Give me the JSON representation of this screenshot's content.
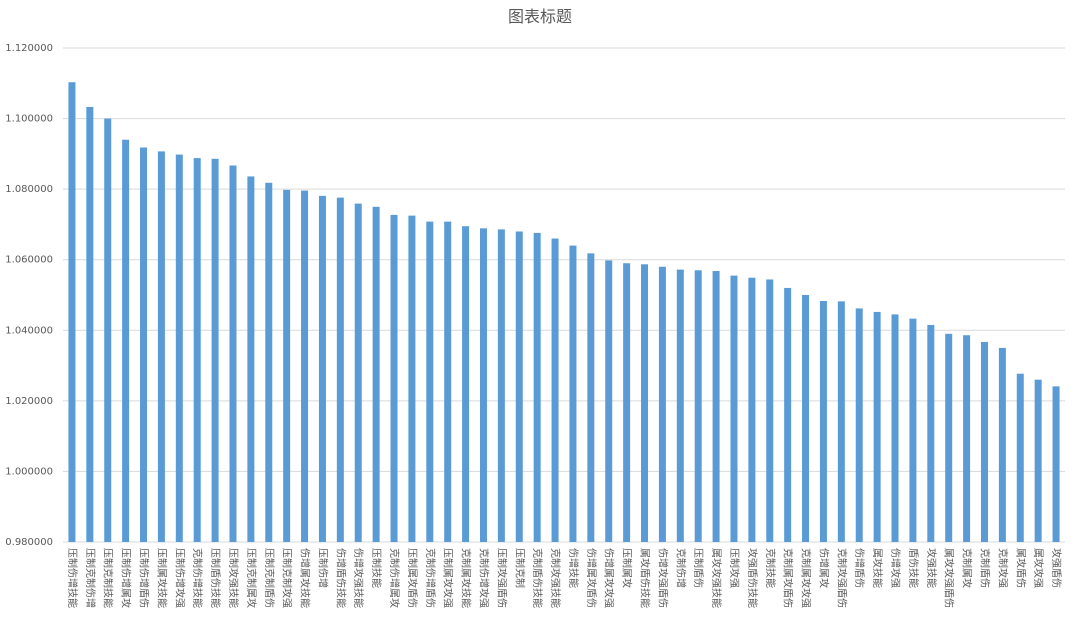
{
  "chart_data": {
    "type": "bar",
    "title": "图表标题",
    "color": "#5b9bd5",
    "grid": true,
    "categories": [
      "压制伤增技能",
      "压制克制伤增",
      "压制克制技能",
      "压制伤增属攻",
      "压制伤增盾伤",
      "压制属攻技能",
      "压制伤增攻强",
      "克制伤增技能",
      "压制盾伤技能",
      "压制攻强技能",
      "压制克制属攻",
      "压制克制盾伤",
      "压制克制攻强",
      "伤增属攻技能",
      "压制伤增",
      "伤增盾伤技能",
      "伤增攻强技能",
      "压制技能",
      "克制伤增属攻",
      "压制属攻盾伤",
      "克制伤增盾伤",
      "压制属攻攻强",
      "克制属攻技能",
      "克制伤增攻强",
      "压制攻强盾伤",
      "压制克制",
      "克制盾伤技能",
      "克制攻强技能",
      "伤增技能",
      "伤增属攻盾伤",
      "伤增属攻攻强",
      "压制属攻",
      "属攻盾伤技能",
      "伤增攻强盾伤",
      "克制伤增",
      "压制盾伤",
      "属攻攻强技能",
      "压制攻强",
      "攻强盾伤技能",
      "克制技能",
      "克制属攻盾伤",
      "克制属攻攻强",
      "伤增属攻",
      "克制攻强盾伤",
      "伤增盾伤",
      "属攻技能",
      "伤增攻强",
      "盾伤技能",
      "攻强技能",
      "属攻攻强盾伤",
      "克制属攻",
      "克制盾伤",
      "克制攻强",
      "属攻盾伤",
      "属攻攻强",
      "攻强盾伤"
    ],
    "values": [
      1.1103,
      1.1033,
      1.1,
      1.094,
      1.0918,
      1.0907,
      1.0898,
      1.0888,
      1.0886,
      1.0867,
      1.0836,
      1.0818,
      1.0798,
      1.0796,
      1.0781,
      1.0776,
      1.0759,
      1.075,
      1.0727,
      1.0725,
      1.0708,
      1.0708,
      1.0695,
      1.0689,
      1.0686,
      1.068,
      1.0676,
      1.066,
      1.064,
      1.0618,
      1.0598,
      1.059,
      1.0587,
      1.058,
      1.0572,
      1.057,
      1.0568,
      1.0555,
      1.0549,
      1.0544,
      1.052,
      1.05,
      1.0483,
      1.0482,
      1.0462,
      1.0452,
      1.0445,
      1.0433,
      1.0415,
      1.039,
      1.0386,
      1.0367,
      1.035,
      1.0277,
      1.026,
      1.0241
    ],
    "ylim": [
      0.98,
      1.12
    ],
    "yticks": [
      {
        "value": 0.98,
        "label": "0.980000"
      },
      {
        "value": 1.0,
        "label": "1.000000"
      },
      {
        "value": 1.02,
        "label": "1.020000"
      },
      {
        "value": 1.04,
        "label": "1.040000"
      },
      {
        "value": 1.06,
        "label": "1.060000"
      },
      {
        "value": 1.08,
        "label": "1.080000"
      },
      {
        "value": 1.1,
        "label": "1.100000"
      },
      {
        "value": 1.12,
        "label": "1.120000"
      }
    ]
  }
}
